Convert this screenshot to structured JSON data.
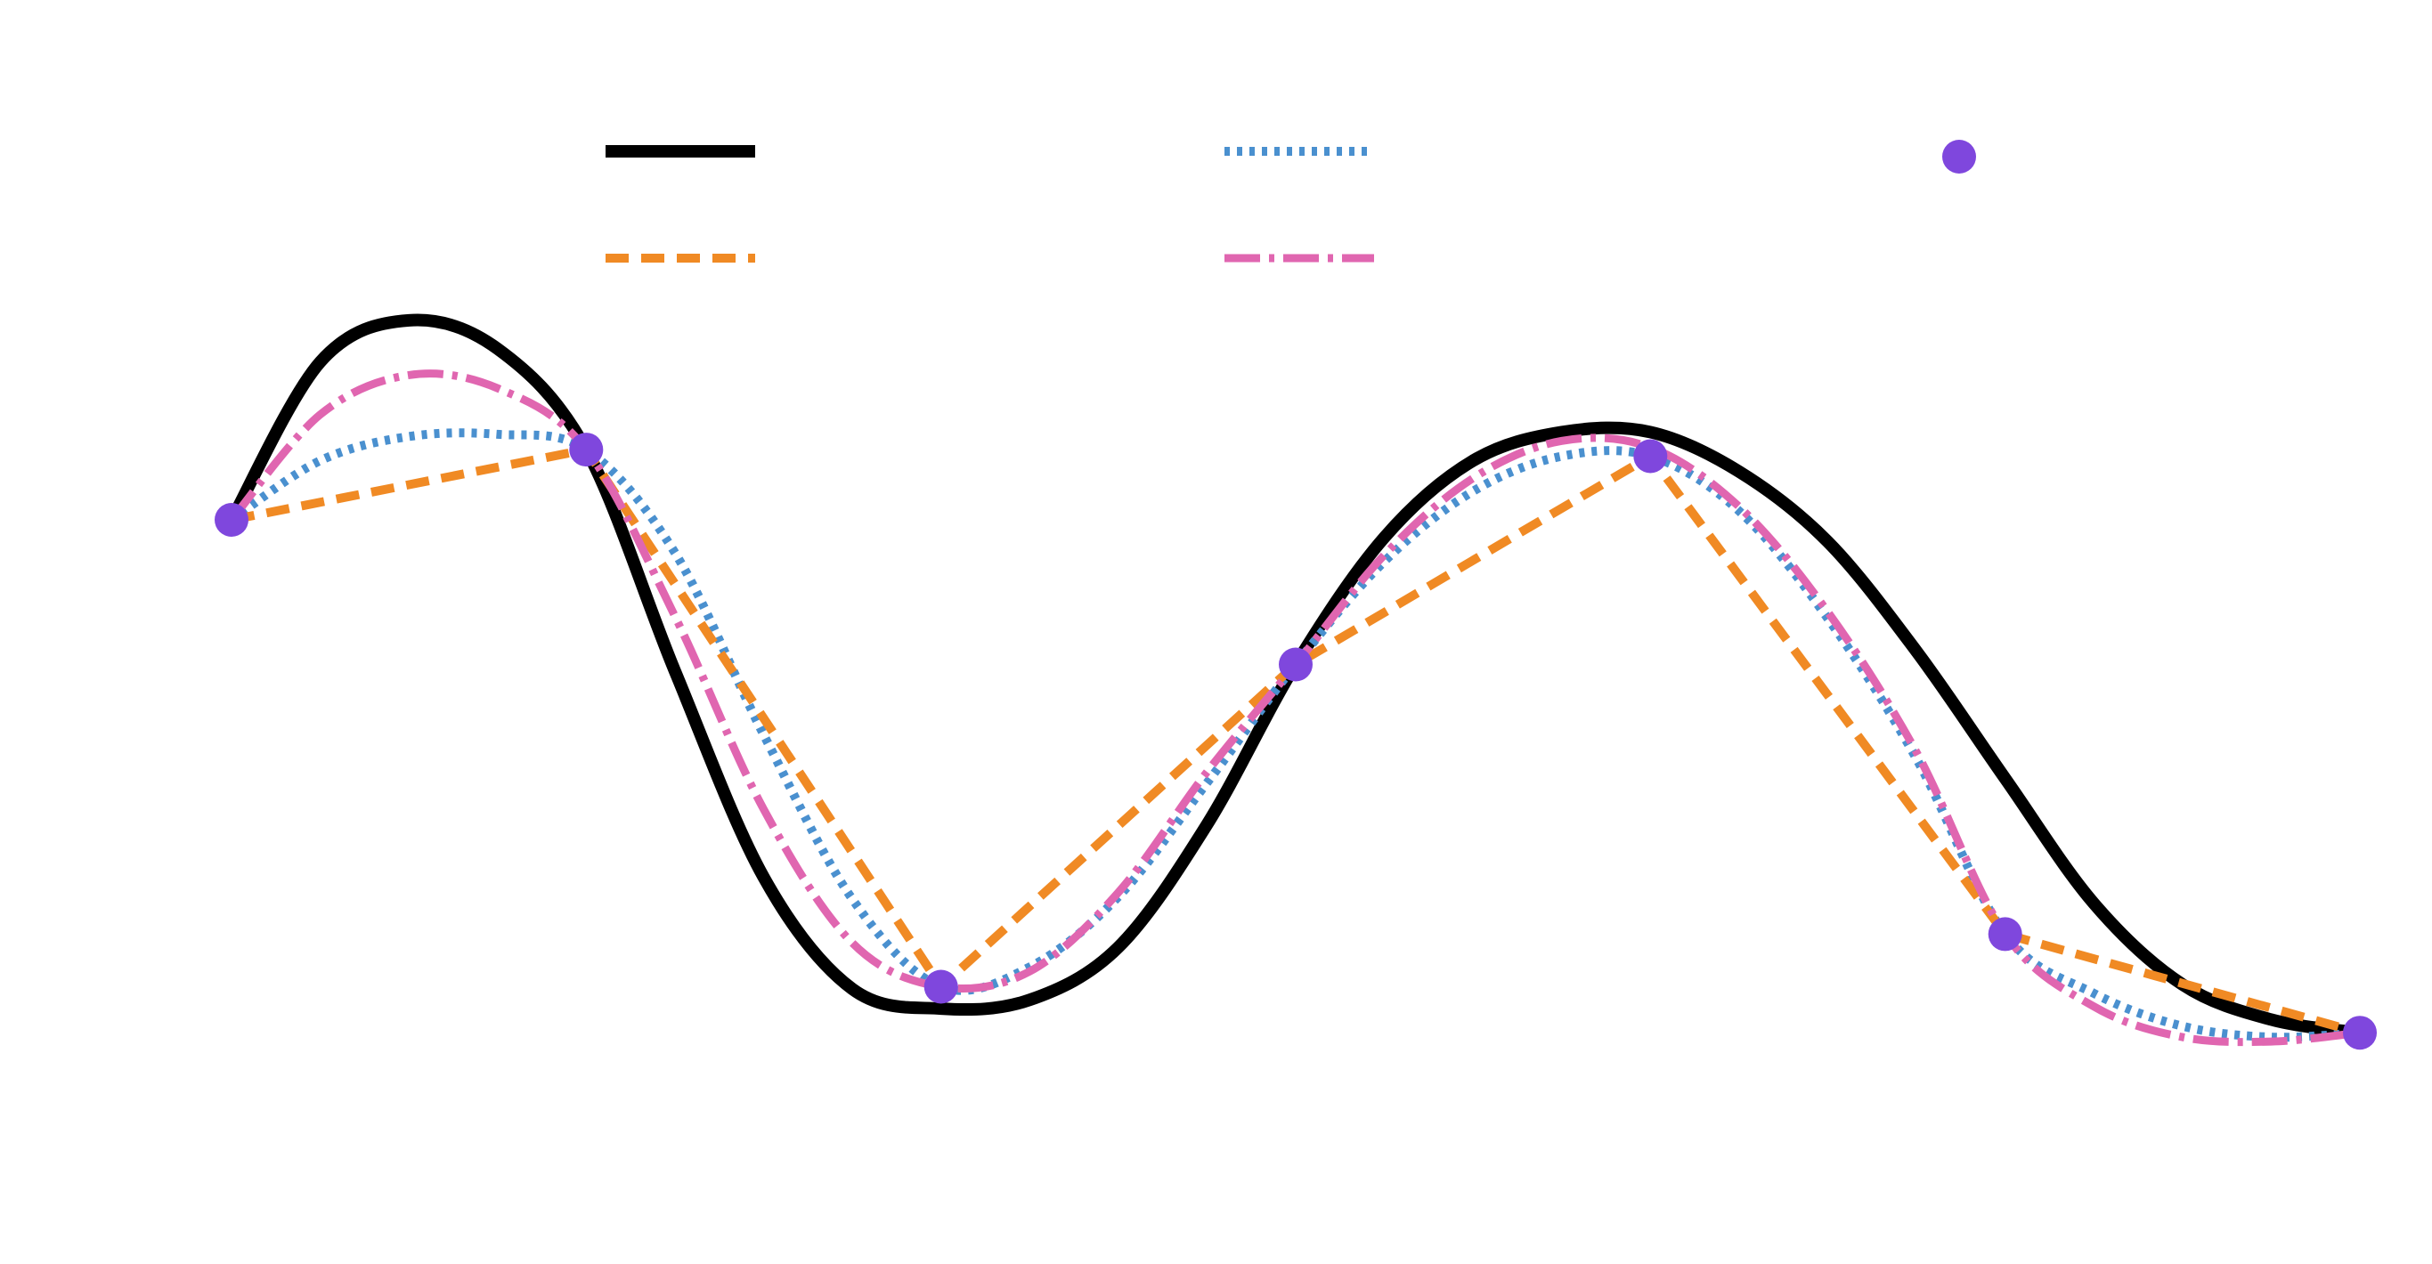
{
  "chart_data": {
    "type": "line",
    "title": "",
    "xlabel": "",
    "ylabel": "",
    "grid": false,
    "axes_visible": false,
    "legend_placement": "top",
    "legend_columns": 3,
    "interpolation_points": {
      "x": [
        0,
        1,
        2,
        3,
        4,
        5,
        6
      ],
      "y": [
        0.0,
        0.32,
        -2.13,
        -0.66,
        0.29,
        -1.89,
        -2.34
      ],
      "color": "#7f47dd",
      "marker": "circle"
    },
    "series": [
      {
        "color": "#000000",
        "dash": "solid",
        "x": [
          0,
          0.25,
          0.5,
          0.75,
          1,
          1.25,
          1.5,
          1.75,
          2,
          2.25,
          2.5,
          2.75,
          3,
          3.25,
          3.5,
          3.75,
          4,
          4.25,
          4.5,
          4.75,
          5,
          5.25,
          5.5,
          5.75,
          6
        ],
        "y": [
          0.0,
          0.72,
          0.91,
          0.78,
          0.32,
          -0.69,
          -1.63,
          -2.14,
          -2.23,
          -2.19,
          -1.95,
          -1.39,
          -0.66,
          -0.08,
          0.27,
          0.4,
          0.4,
          0.22,
          -0.1,
          -0.6,
          -1.18,
          -1.75,
          -2.12,
          -2.28,
          -2.34
        ]
      },
      {
        "color": "#4a90cf",
        "dash": "dotted",
        "x": [
          0,
          0.25,
          0.5,
          0.75,
          1,
          1.25,
          1.5,
          1.75,
          2,
          2.25,
          2.5,
          2.75,
          3,
          3.25,
          3.5,
          3.75,
          4,
          4.25,
          4.5,
          4.75,
          5,
          5.25,
          5.5,
          5.75,
          6
        ],
        "y": [
          0.0,
          0.27,
          0.38,
          0.39,
          0.32,
          -0.15,
          -0.98,
          -1.73,
          -2.13,
          -2.04,
          -1.72,
          -1.2,
          -0.66,
          -0.19,
          0.13,
          0.29,
          0.29,
          0.04,
          -0.45,
          -1.09,
          -1.89,
          -2.16,
          -2.31,
          -2.36,
          -2.34
        ]
      },
      {
        "color": "#f08a24",
        "dash": "dashed",
        "x": [
          0,
          1,
          2,
          3,
          4,
          5,
          6
        ],
        "y": [
          0.0,
          0.32,
          -2.13,
          -0.66,
          0.29,
          -1.89,
          -2.34
        ]
      },
      {
        "color": "#e066b0",
        "dash": "dashdot",
        "x": [
          0,
          0.25,
          0.5,
          0.75,
          1,
          1.25,
          1.5,
          1.75,
          2,
          2.25,
          2.5,
          2.75,
          3,
          3.25,
          3.5,
          3.75,
          4,
          4.25,
          4.5,
          4.75,
          5,
          5.25,
          5.5,
          5.75,
          6
        ],
        "y": [
          0.0,
          0.48,
          0.66,
          0.6,
          0.32,
          -0.44,
          -1.32,
          -1.93,
          -2.13,
          -2.06,
          -1.7,
          -1.15,
          -0.66,
          -0.16,
          0.19,
          0.36,
          0.33,
          0.06,
          -0.42,
          -1.06,
          -1.89,
          -2.22,
          -2.36,
          -2.38,
          -2.34
        ]
      }
    ],
    "xlim": [
      0,
      6
    ],
    "ylim": [
      -2.4,
      0.95
    ]
  },
  "legend": {
    "entries": [
      {
        "color": "#000000",
        "dash": "solid",
        "marker": false
      },
      {
        "color": "#4a90cf",
        "dash": "dotted",
        "marker": false
      },
      {
        "color": "#7f47dd",
        "dash": "none",
        "marker": true
      },
      {
        "color": "#f08a24",
        "dash": "dashed",
        "marker": false
      },
      {
        "color": "#e066b0",
        "dash": "dashdot",
        "marker": false
      }
    ]
  }
}
